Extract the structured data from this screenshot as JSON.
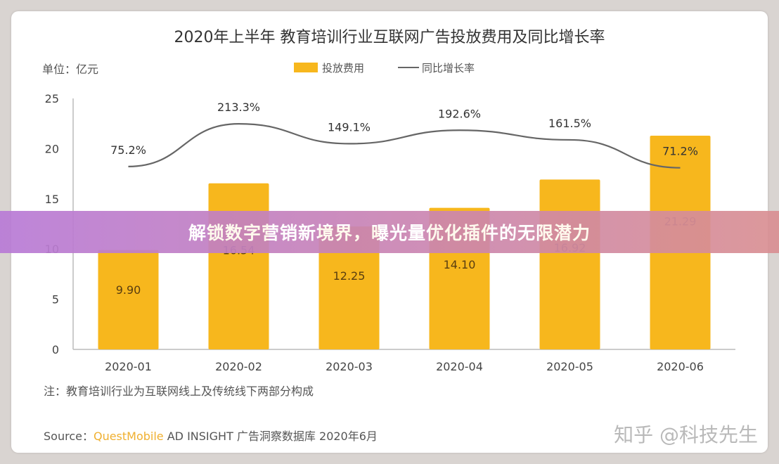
{
  "chart_data": {
    "type": "bar",
    "title": "2020年上半年 教育培训行业互联网广告投放费用及同比增长率",
    "unit_label": "单位：亿元",
    "categories": [
      "2020-01",
      "2020-02",
      "2020-03",
      "2020-04",
      "2020-05",
      "2020-06"
    ],
    "series": [
      {
        "name": "投放费用",
        "type": "bar",
        "values": [
          9.9,
          16.54,
          12.25,
          14.1,
          16.92,
          21.29
        ],
        "value_labels": [
          "9.90",
          "16.54",
          "12.25",
          "14.10",
          "16.92",
          "21.29"
        ],
        "color": "#f7b71d"
      },
      {
        "name": "同比增长率",
        "type": "line",
        "values": [
          75.2,
          213.3,
          149.1,
          192.6,
          161.5,
          71.2
        ],
        "value_labels": [
          "75.2%",
          "213.3%",
          "149.1%",
          "192.6%",
          "161.5%",
          "71.2%"
        ],
        "color": "#666666"
      }
    ],
    "ylim": [
      0,
      25
    ],
    "yticks": [
      "0",
      "5",
      "10",
      "15",
      "20",
      "25"
    ],
    "growth_scale": [
      0,
      250
    ],
    "grid": false,
    "legend_position": "top-center"
  },
  "footnote": "注：教育培训行业为互联网线上及传统线下两部分构成",
  "source": {
    "prefix": "Source：",
    "brand": "QuestMobile",
    "rest": " AD INSIGHT 广告洞察数据库 2020年6月"
  },
  "banner_text": "解锁数字营销新境界，曝光量优化插件的无限潜力",
  "credit": "知乎 @科技先生"
}
